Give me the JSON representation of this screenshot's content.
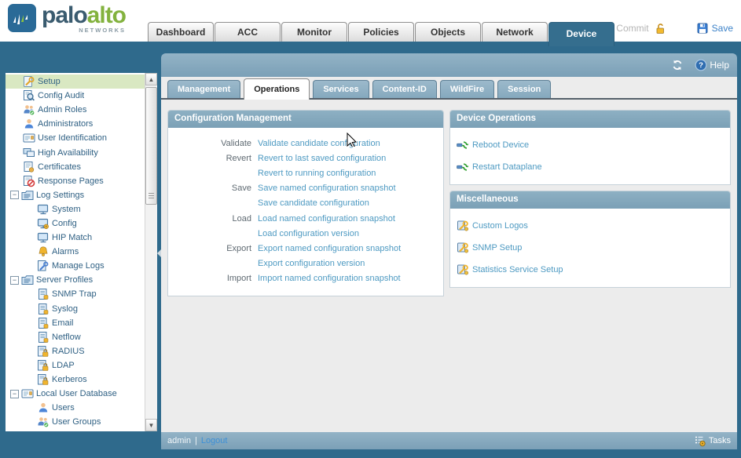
{
  "brand": {
    "word1": "palo",
    "word2": "alto",
    "word3": "NETWORKS"
  },
  "top_nav": {
    "tabs": [
      {
        "label": "Dashboard",
        "active": false
      },
      {
        "label": "ACC",
        "active": false
      },
      {
        "label": "Monitor",
        "active": false
      },
      {
        "label": "Policies",
        "active": false
      },
      {
        "label": "Objects",
        "active": false
      },
      {
        "label": "Network",
        "active": false
      },
      {
        "label": "Device",
        "active": true
      }
    ],
    "commit": {
      "label": "Commit",
      "enabled": false
    },
    "save": {
      "label": "Save",
      "enabled": true
    }
  },
  "content_header": {
    "help_label": "Help"
  },
  "sub_tabs": {
    "tabs": [
      {
        "label": "Management",
        "active": false
      },
      {
        "label": "Operations",
        "active": true
      },
      {
        "label": "Services",
        "active": false
      },
      {
        "label": "Content-ID",
        "active": false
      },
      {
        "label": "WildFire",
        "active": false
      },
      {
        "label": "Session",
        "active": false
      }
    ]
  },
  "sidebar": {
    "items": [
      {
        "label": "Setup",
        "icon": "setup",
        "level": 0,
        "selected": true
      },
      {
        "label": "Config Audit",
        "icon": "searchdoc",
        "level": 0
      },
      {
        "label": "Admin Roles",
        "icon": "users",
        "level": 0
      },
      {
        "label": "Administrators",
        "icon": "user",
        "level": 0
      },
      {
        "label": "User Identification",
        "icon": "card",
        "level": 0
      },
      {
        "label": "High Availability",
        "icon": "monitors",
        "level": 0
      },
      {
        "label": "Certificates",
        "icon": "cert",
        "level": 0
      },
      {
        "label": "Response Pages",
        "icon": "block",
        "level": 0
      },
      {
        "label": "Log Settings",
        "icon": "folderlist",
        "level": 0,
        "expanded": true
      },
      {
        "label": "System",
        "icon": "screen",
        "level": 1
      },
      {
        "label": "Config",
        "icon": "screengear",
        "level": 1
      },
      {
        "label": "HIP Match",
        "icon": "screen",
        "level": 1
      },
      {
        "label": "Alarms",
        "icon": "bell",
        "level": 1
      },
      {
        "label": "Manage Logs",
        "icon": "docwrench",
        "level": 1
      },
      {
        "label": "Server Profiles",
        "icon": "folderlist",
        "level": 0,
        "expanded": true
      },
      {
        "label": "SNMP Trap",
        "icon": "docbadge",
        "level": 1
      },
      {
        "label": "Syslog",
        "icon": "docbadge",
        "level": 1
      },
      {
        "label": "Email",
        "icon": "docbadge",
        "level": 1
      },
      {
        "label": "Netflow",
        "icon": "docbadge",
        "level": 1
      },
      {
        "label": "RADIUS",
        "icon": "lockdoc",
        "level": 1
      },
      {
        "label": "LDAP",
        "icon": "lockdoc",
        "level": 1
      },
      {
        "label": "Kerberos",
        "icon": "lockdoc",
        "level": 1
      },
      {
        "label": "Local User Database",
        "icon": "card",
        "level": 0,
        "expanded": true
      },
      {
        "label": "Users",
        "icon": "user",
        "level": 1
      },
      {
        "label": "User Groups",
        "icon": "users",
        "level": 1
      }
    ]
  },
  "panels": {
    "config_management": {
      "title": "Configuration Management",
      "rows": [
        {
          "label": "Validate",
          "link": "Validate candidate configuration"
        },
        {
          "label": "Revert",
          "link": "Revert to last saved configuration"
        },
        {
          "label": "",
          "link": "Revert to running configuration"
        },
        {
          "label": "Save",
          "link": "Save named configuration snapshot"
        },
        {
          "label": "",
          "link": "Save candidate configuration"
        },
        {
          "label": "Load",
          "link": "Load named configuration snapshot"
        },
        {
          "label": "",
          "link": "Load configuration version"
        },
        {
          "label": "Export",
          "link": "Export named configuration snapshot"
        },
        {
          "label": "",
          "link": "Export configuration version"
        },
        {
          "label": "Import",
          "link": "Import named configuration snapshot"
        }
      ]
    },
    "device_operations": {
      "title": "Device Operations",
      "items": [
        {
          "label": "Reboot Device",
          "icon": "reboot"
        },
        {
          "label": "Restart Dataplane",
          "icon": "reboot"
        }
      ]
    },
    "miscellaneous": {
      "title": "Miscellaneous",
      "items": [
        {
          "label": "Custom Logos",
          "icon": "toolgold"
        },
        {
          "label": "SNMP Setup",
          "icon": "toolgold"
        },
        {
          "label": "Statistics Service Setup",
          "icon": "toolgold"
        }
      ]
    }
  },
  "footer": {
    "user": "admin",
    "divider": "|",
    "logout_label": "Logout",
    "tasks_label": "Tasks"
  },
  "colors": {
    "teal_background": "#2f6a8c",
    "steel_header": "#82a6bb",
    "panel_header": "#7ca1b7",
    "link_blue": "#4e9ac2",
    "selected_green": "#d9e8c2",
    "sidebar_text": "#306184",
    "save_blue": "#3c82c8",
    "lock_gold": "#f0b42d",
    "logo_green": "#83b23e",
    "logo_slate": "#3a5b6f"
  }
}
